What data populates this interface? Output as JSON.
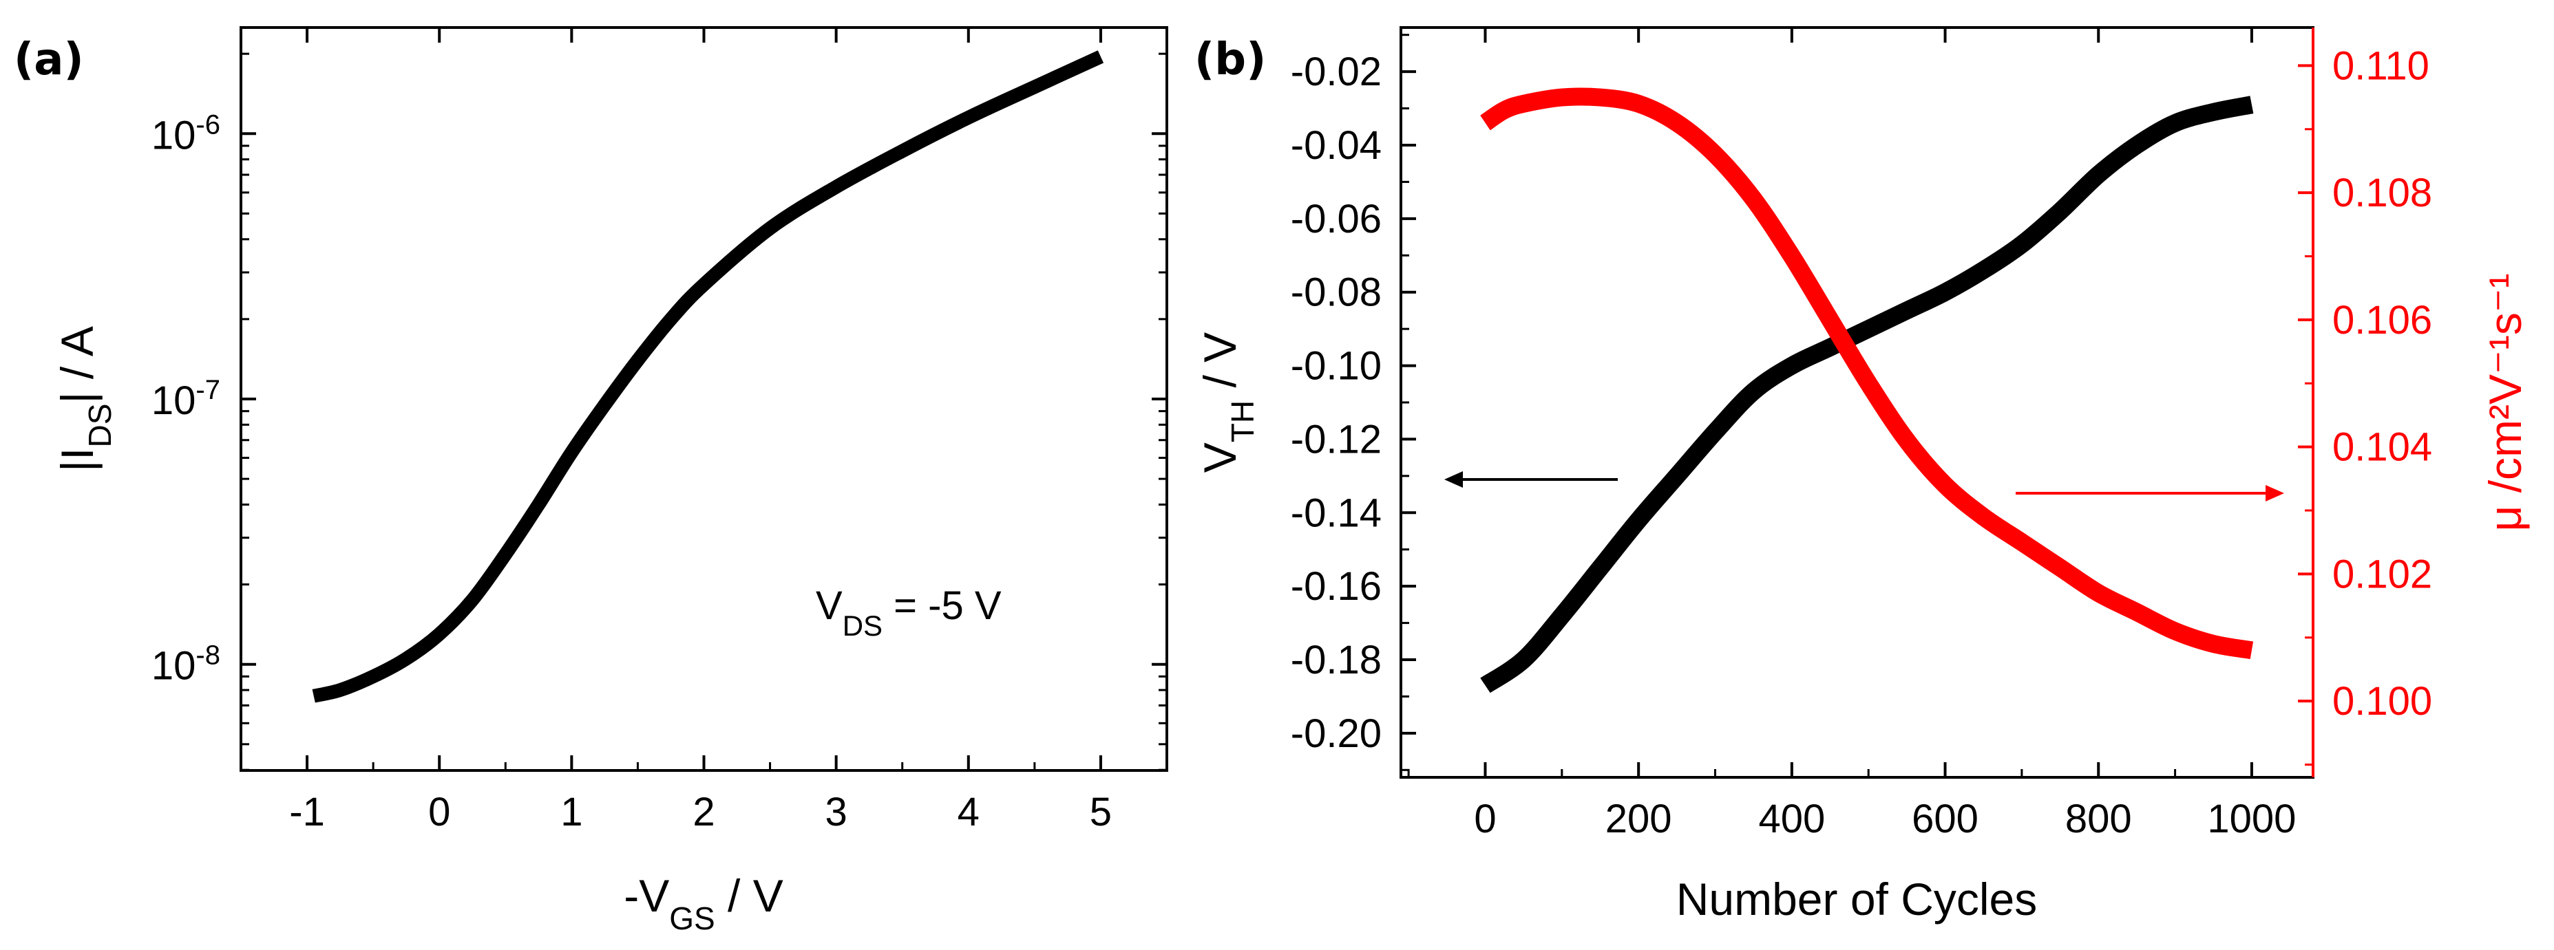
{
  "chart_data": [
    {
      "panel_label": "(a)",
      "type": "line",
      "title": "",
      "xlabel": {
        "prefix": "-V",
        "sub": "GS",
        "suffix": " / V"
      },
      "ylabel": {
        "prefix": "|I",
        "sub": "DS",
        "suffix": "| / A"
      },
      "annotation": {
        "prefix": "V",
        "sub": "DS",
        "suffix": " = -5 V"
      },
      "xlim": [
        -1.5,
        5.5
      ],
      "ylim_log10": [
        -8.4,
        -5.6
      ],
      "yscale": "log",
      "xticks": [
        -1,
        0,
        1,
        2,
        3,
        4,
        5
      ],
      "xtick_labels": [
        "-1",
        "0",
        "1",
        "2",
        "3",
        "4",
        "5"
      ],
      "yticks_log10": [
        -8,
        -7,
        -6
      ],
      "ytick_labels": [
        {
          "base": "10",
          "exp": "-8"
        },
        {
          "base": "10",
          "exp": "-7"
        },
        {
          "base": "10",
          "exp": "-6"
        }
      ],
      "series": [
        {
          "name": "I_DS",
          "color": "#000000",
          "x": [
            -0.95,
            -0.75,
            -0.5,
            -0.25,
            0.0,
            0.25,
            0.5,
            0.75,
            1.0,
            1.25,
            1.5,
            1.75,
            2.0,
            2.5,
            3.0,
            3.5,
            4.0,
            4.5,
            5.0
          ],
          "y": [
            7.6e-09,
            8e-09,
            9e-09,
            1.05e-08,
            1.3e-08,
            1.75e-08,
            2.6e-08,
            4e-08,
            6.3e-08,
            9.5e-08,
            1.4e-07,
            2e-07,
            2.7e-07,
            4.4e-07,
            6.3e-07,
            8.6e-07,
            1.15e-06,
            1.5e-06,
            1.95e-06
          ]
        }
      ]
    },
    {
      "panel_label": "(b)",
      "type": "scatter",
      "title": "",
      "xlabel": "Number of Cycles",
      "ylabel_left": {
        "prefix": "V",
        "sub": "TH",
        "suffix": " / V"
      },
      "ylabel_right": "μ /cm²V⁻¹s⁻¹",
      "xlim": [
        -110,
        1080
      ],
      "ylim_left": [
        -0.212,
        -0.008
      ],
      "ylim_right": [
        0.0988,
        0.1106
      ],
      "xticks": [
        0,
        200,
        400,
        600,
        800,
        1000
      ],
      "xtick_labels": [
        "0",
        "200",
        "400",
        "600",
        "800",
        "1000"
      ],
      "yticks_left": [
        -0.02,
        -0.04,
        -0.06,
        -0.08,
        -0.1,
        -0.12,
        -0.14,
        -0.16,
        -0.18,
        -0.2
      ],
      "ytick_labels_left": [
        "-0.02",
        "-0.04",
        "-0.06",
        "-0.08",
        "-0.10",
        "-0.12",
        "-0.14",
        "-0.16",
        "-0.18",
        "-0.20"
      ],
      "yticks_right": [
        0.1,
        0.102,
        0.104,
        0.106,
        0.108,
        0.11
      ],
      "ytick_labels_right": [
        "0.100",
        "0.102",
        "0.104",
        "0.106",
        "0.108",
        "0.110"
      ],
      "right_axis_color": "#ff0000",
      "series": [
        {
          "name": "V_TH",
          "axis": "left",
          "color": "#000000",
          "x": [
            0,
            50,
            100,
            150,
            200,
            250,
            300,
            350,
            400,
            450,
            500,
            550,
            600,
            650,
            700,
            750,
            800,
            850,
            900,
            950,
            1000
          ],
          "y": [
            -0.187,
            -0.18,
            -0.168,
            -0.155,
            -0.142,
            -0.13,
            -0.118,
            -0.107,
            -0.1,
            -0.095,
            -0.09,
            -0.085,
            -0.08,
            -0.074,
            -0.067,
            -0.058,
            -0.048,
            -0.04,
            -0.034,
            -0.031,
            -0.029
          ]
        },
        {
          "name": "μ",
          "axis": "right",
          "color": "#ff0000",
          "x": [
            0,
            25,
            50,
            100,
            150,
            200,
            250,
            300,
            350,
            400,
            450,
            500,
            550,
            600,
            650,
            700,
            750,
            800,
            850,
            900,
            950,
            1000
          ],
          "y": [
            0.1091,
            0.1093,
            0.1094,
            0.1095,
            0.1095,
            0.1094,
            0.1091,
            0.1086,
            0.1079,
            0.107,
            0.106,
            0.105,
            0.1041,
            0.1034,
            0.1029,
            0.1025,
            0.1021,
            0.1017,
            0.1014,
            0.1011,
            0.1009,
            0.1008
          ]
        }
      ],
      "arrows": [
        {
          "direction": "left",
          "color": "#000000",
          "points_to": "left-axis"
        },
        {
          "direction": "right",
          "color": "#ff0000",
          "points_to": "right-axis"
        }
      ]
    }
  ]
}
